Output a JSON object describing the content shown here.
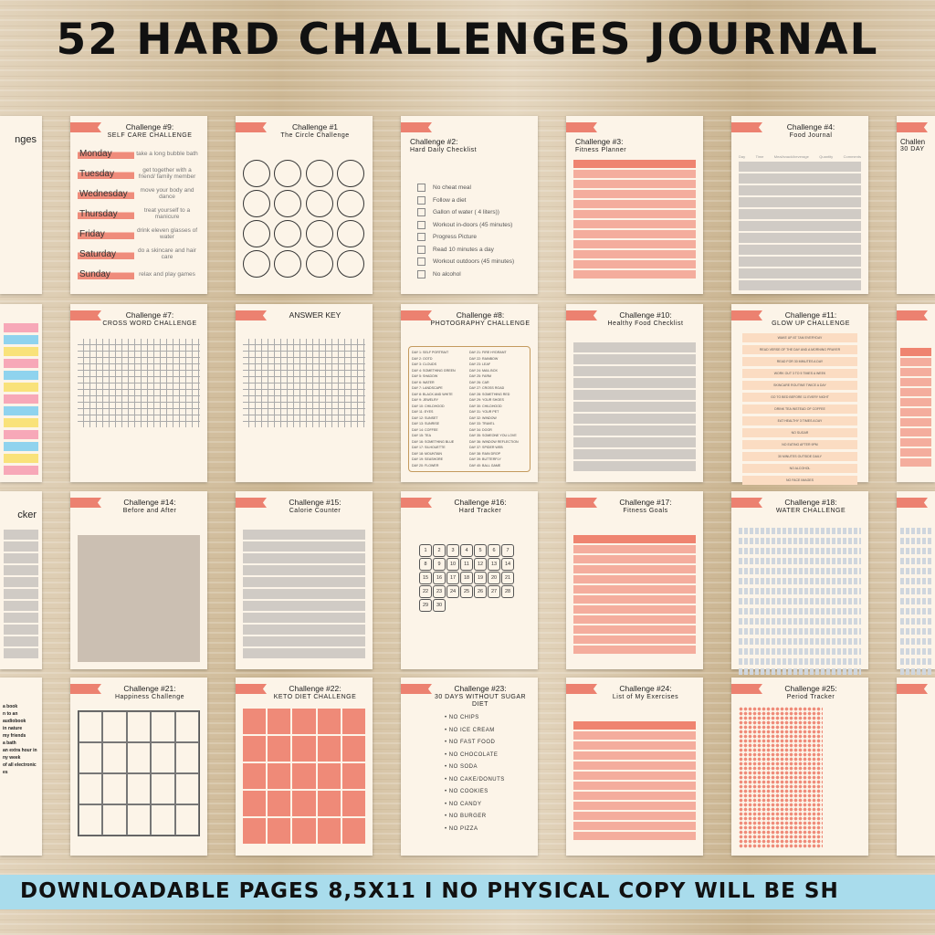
{
  "title": "52 HARD CHALLENGES JOURNAL",
  "banner": "DOWNLOADABLE PAGES 8,5X11  I  NO PHYSICAL COPY WILL BE SH",
  "colors": {
    "accent": "#ec8170",
    "paper": "#fcf4e8",
    "banner": "#a9dcec",
    "grey_table": "#cfcac4",
    "salmon_table": "#f2a493"
  },
  "cards": [
    {
      "title": "nges",
      "type": "blank"
    },
    {
      "title": "Challenge #9:",
      "subtitle": "SELF CARE CHALLENGE",
      "type": "days",
      "items": [
        [
          "Monday",
          "take a long bubble bath"
        ],
        [
          "Tuesday",
          "get together with a friend/ family member"
        ],
        [
          "Wednesday",
          "move your body and dance"
        ],
        [
          "Thursday",
          "treat yourself to a manicure"
        ],
        [
          "Friday",
          "drink eleven glasses of water"
        ],
        [
          "Saturday",
          "do a skincare and hair care"
        ],
        [
          "Sunday",
          "relax and play games"
        ]
      ]
    },
    {
      "title": "Challenge #1",
      "subtitle": "The Circle Challenge",
      "type": "circles"
    },
    {
      "title": "Challenge #2:",
      "subtitle": "Hard Daily Checklist",
      "type": "checklist",
      "left": true,
      "items": [
        "No cheat meal",
        "Follow a diet",
        "Gallon of water ( 4 liters))",
        "Workout in-doors (45 minutes)",
        "Progress Picture",
        "Read 10 minutes a day",
        "Workout outdoors (45 minutes)",
        "No alcohol"
      ]
    },
    {
      "title": "Challenge #3:",
      "subtitle": "Fitness Planner",
      "type": "salmon",
      "left": true
    },
    {
      "title": "Challenge #4:",
      "subtitle": "Food Journal",
      "type": "grey",
      "headers": [
        "Day",
        "Time",
        "Meal/snack/beverage",
        "Quantity",
        "Comments"
      ]
    },
    {
      "title": "Challen",
      "subtitle": "30 DAY",
      "type": "blank"
    },
    {
      "title": "",
      "type": "notes"
    },
    {
      "title": "Challenge #7:",
      "subtitle": "CROSS WORD CHALLENGE",
      "type": "cross"
    },
    {
      "title": "ANSWER KEY",
      "type": "cross"
    },
    {
      "title": "Challenge #8:",
      "subtitle": "PHOTOGRAPHY CHALLENGE",
      "type": "photo",
      "items": [
        "SELF PORTRAIT",
        "OOTD",
        "CLOUDS",
        "SOMETHING GREEN",
        "SHADOW",
        "WATER",
        "LANDSCAPE",
        "BLACK AND WHITE",
        "JEWELRY",
        "CHILDHOOD",
        "EYES",
        "SUNSET",
        "SUNRISE",
        "COFFEE",
        "TEA",
        "SOMETHING BLUE",
        "SILHOUETTE",
        "MOUNTAIN",
        "SEASHORE",
        "FLOWER",
        "FIRE HYDRANT",
        "RAINBOW",
        "LEAF",
        "MAIL BOX",
        "FARM",
        "CAR",
        "CROSS ROAD",
        "SOMETHING RED",
        "YOUR SHOES",
        "CHILDHOOD",
        "YOUR PET",
        "WINDOW",
        "TRAVEL",
        "DOOR",
        "SOMEONE YOU LOVE",
        "WINDOW REFLECTION",
        "SPIDER WEB",
        "RAIN DROP",
        "BUTTERFLY",
        "BALL GAME"
      ]
    },
    {
      "title": "Challenge #10:",
      "subtitle": "Healthy Food Checklist",
      "type": "grey"
    },
    {
      "title": "Challenge #11:",
      "subtitle": "GLOW UP CHALLENGE",
      "type": "glow",
      "items": [
        "WAKE UP AT 7AM EVERYDAY",
        "READ VERSE OF THE DAY AND A MORNING PRAYER",
        "READ FOR 30 MINUTES A DAY",
        "WORK OUT 3 TO 5 TIMES A WEEK",
        "SKINCARE ROUTINE TWICE A DAY",
        "GO TO BED BEFORE 11 EVERY NIGHT",
        "DRINK TEA INSTEAD OF COFFEE",
        "EAT HEALTHY 3 TIMES A DAY",
        "NO SUGAR",
        "NO EATING AFTER 9PM",
        "30 MINUTES OUTSIDE DAILY",
        "NO ALCOHOL",
        "NO FACE IMAGES"
      ]
    },
    {
      "title": "",
      "type": "salmon"
    },
    {
      "title": "cker",
      "type": "grey"
    },
    {
      "title": "Challenge #14:",
      "subtitle": "Before and After",
      "type": "before"
    },
    {
      "title": "Challenge #15:",
      "subtitle": "Calorie Counter",
      "type": "grey"
    },
    {
      "title": "Challenge #16:",
      "subtitle": "Hard Tracker",
      "type": "hex"
    },
    {
      "title": "Challenge #17:",
      "subtitle": "Fitness Goals",
      "type": "salmon"
    },
    {
      "title": "Challenge #18:",
      "subtitle": "WATER CHALLENGE",
      "type": "water"
    },
    {
      "title": "",
      "type": "water"
    },
    {
      "title": "",
      "type": "leftlist",
      "items": [
        "a book",
        "n to an audiobook",
        "in nature",
        "my friends",
        "a bath",
        "an extra hour in",
        "ny week",
        "of all electronic",
        "es"
      ]
    },
    {
      "title": "Challenge #21:",
      "subtitle": "Happiness Challenge",
      "type": "grid5"
    },
    {
      "title": "Challenge #22:",
      "subtitle": "KETO DIET CHALLENGE",
      "type": "keto"
    },
    {
      "title": "Challenge #23:",
      "subtitle": "30 DAYS WITHOUT SUGAR DIET",
      "type": "nosugar",
      "items": [
        "NO CHIPS",
        "NO ICE CREAM",
        "NO FAST FOOD",
        "NO CHOCOLATE",
        "NO SODA",
        "NO CAKE/DONUTS",
        "NO COOKIES",
        "NO CANDY",
        "NO BURGER",
        "NO PIZZA"
      ]
    },
    {
      "title": "Challenge #24:",
      "subtitle": "List of My Exercises",
      "type": "salmon"
    },
    {
      "title": "Challenge #25:",
      "subtitle": "Period Tracker",
      "type": "dots"
    },
    {
      "title": "",
      "type": "blank"
    }
  ]
}
